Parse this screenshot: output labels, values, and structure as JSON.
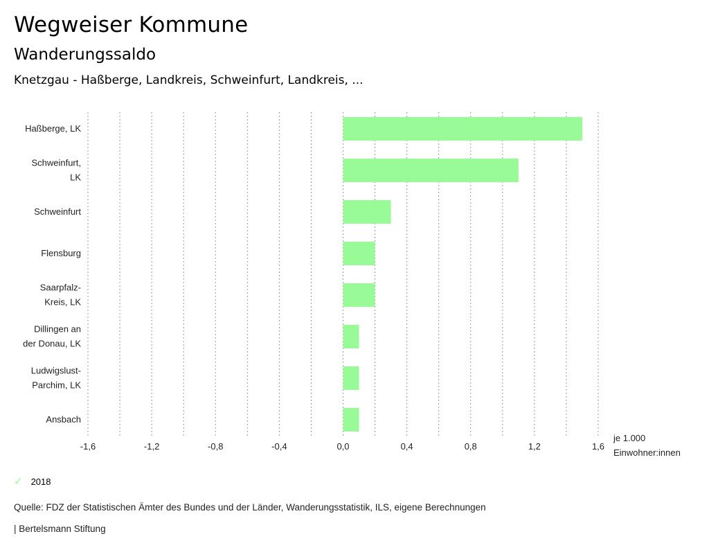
{
  "header": {
    "title": "Wegweiser Kommune",
    "subtitle": "Wanderungssaldo",
    "region": "Knetzgau - Haßberge, Landkreis, Schweinfurt, Landkreis, ..."
  },
  "chart_data": {
    "type": "bar",
    "orientation": "horizontal",
    "categories": [
      [
        "Haßberge, LK"
      ],
      [
        "Schweinfurt,",
        "LK"
      ],
      [
        "Schweinfurt"
      ],
      [
        "Flensburg"
      ],
      [
        "Saarpfalz-",
        "Kreis, LK"
      ],
      [
        "Dillingen an",
        "der Donau, LK"
      ],
      [
        "Ludwigslust-",
        "Parchim, LK"
      ],
      [
        "Ansbach"
      ]
    ],
    "series": [
      {
        "name": "2018",
        "values": [
          1.5,
          1.1,
          0.3,
          0.2,
          0.2,
          0.1,
          0.1,
          0.1
        ],
        "color": "#98fb98"
      }
    ],
    "xlim": [
      -1.6,
      1.6
    ],
    "ticks": [
      -1.6,
      -1.4,
      -1.2,
      -1.0,
      -0.8,
      -0.6,
      -0.4,
      -0.2,
      0.0,
      0.2,
      0.4,
      0.6,
      0.8,
      1.0,
      1.2,
      1.4,
      1.6
    ],
    "tick_labels": [
      "-1,6",
      "-1,2",
      "-0,8",
      "-0,4",
      "0,0",
      "0,4",
      "0,8",
      "1,2",
      "1,6"
    ],
    "tick_label_values": [
      -1.6,
      -1.2,
      -0.8,
      -0.4,
      0.0,
      0.4,
      0.8,
      1.2,
      1.6
    ],
    "unit_label": [
      "je 1.000",
      "Einwohner:innen"
    ],
    "grid": true
  },
  "legend": {
    "label": "2018",
    "icon": "check-icon",
    "color": "#98fb98"
  },
  "footer": {
    "source": "Quelle: FDZ der Statistischen Ämter des Bundes und der Länder, Wanderungsstatistik, ILS, eigene Berechnungen",
    "brand": "| Bertelsmann Stiftung"
  }
}
